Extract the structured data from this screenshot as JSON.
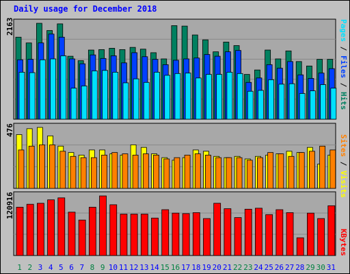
{
  "title": "Daily usage for December 2018",
  "colors": {
    "background": "#c0c0c0",
    "panel": "#a8a8a8",
    "hits": "#008060",
    "files": "#0040ff",
    "pages": "#00e0ff",
    "visits": "#ffff00",
    "sites": "#ff8000",
    "kbytes": "#ff0000",
    "title": "#0000ff",
    "weekday_label": "#0000ff",
    "weekend_label": "#008040"
  },
  "right_labels": {
    "top": [
      "Pages",
      "Files",
      "Hits"
    ],
    "middle": [
      "Sites",
      "Visits"
    ],
    "bottom": [
      "KBytes"
    ],
    "separator": " / "
  },
  "axis_max_labels": {
    "hits": "2163",
    "visits": "476",
    "kbytes": "120916"
  },
  "chart_data": [
    {
      "type": "bar",
      "title": "Daily usage for December 2018",
      "categories": [
        "1",
        "2",
        "3",
        "4",
        "5",
        "6",
        "7",
        "8",
        "9",
        "10",
        "11",
        "12",
        "13",
        "14",
        "15",
        "16",
        "17",
        "18",
        "19",
        "20",
        "21",
        "22",
        "23",
        "24",
        "25",
        "26",
        "27",
        "28",
        "29",
        "30",
        "31"
      ],
      "weekend_days": [
        "1",
        "2",
        "8",
        "9",
        "15",
        "16",
        "22",
        "23",
        "29",
        "30"
      ],
      "ylim": [
        0,
        2163
      ],
      "series": [
        {
          "name": "Hits",
          "values": [
            1850,
            1720,
            2163,
            2000,
            2150,
            1420,
            1320,
            1560,
            1570,
            1600,
            1570,
            1620,
            1580,
            1500,
            1360,
            2110,
            2100,
            1900,
            1790,
            1520,
            1740,
            1660,
            1010,
            1110,
            1560,
            1360,
            1540,
            1300,
            1200,
            1350,
            1350
          ]
        },
        {
          "name": "Files",
          "values": [
            1340,
            1350,
            1720,
            1920,
            1850,
            1360,
            1250,
            1450,
            1370,
            1430,
            1270,
            1500,
            1410,
            1350,
            1230,
            1330,
            1360,
            1380,
            1460,
            1420,
            1520,
            1550,
            830,
            930,
            1230,
            1150,
            1300,
            1000,
            920,
            1040,
            1140
          ]
        },
        {
          "name": "Pages",
          "values": [
            1060,
            1050,
            1340,
            1360,
            1430,
            700,
            750,
            1090,
            1100,
            1060,
            820,
            910,
            830,
            1060,
            990,
            1030,
            1040,
            930,
            1010,
            1010,
            1060,
            1030,
            630,
            650,
            890,
            790,
            800,
            580,
            640,
            780,
            700
          ]
        }
      ]
    },
    {
      "type": "bar",
      "categories": [
        "1",
        "2",
        "3",
        "4",
        "5",
        "6",
        "7",
        "8",
        "9",
        "10",
        "11",
        "12",
        "13",
        "14",
        "15",
        "16",
        "17",
        "18",
        "19",
        "20",
        "21",
        "22",
        "23",
        "24",
        "25",
        "26",
        "27",
        "28",
        "29",
        "30",
        "31"
      ],
      "ylim": [
        0,
        476
      ],
      "series": [
        {
          "name": "Visits",
          "values": [
            420,
            466,
            476,
            410,
            330,
            280,
            260,
            300,
            300,
            270,
            260,
            340,
            320,
            270,
            240,
            220,
            240,
            300,
            290,
            250,
            240,
            250,
            230,
            250,
            260,
            270,
            290,
            280,
            320,
            190,
            260
          ]
        },
        {
          "name": "Sites",
          "values": [
            300,
            330,
            340,
            340,
            290,
            250,
            240,
            240,
            260,
            280,
            270,
            260,
            270,
            260,
            230,
            240,
            260,
            270,
            260,
            240,
            240,
            240,
            220,
            240,
            280,
            270,
            250,
            280,
            290,
            330,
            300
          ]
        }
      ]
    },
    {
      "type": "bar",
      "categories": [
        "1",
        "2",
        "3",
        "4",
        "5",
        "6",
        "7",
        "8",
        "9",
        "10",
        "11",
        "12",
        "13",
        "14",
        "15",
        "16",
        "17",
        "18",
        "19",
        "20",
        "21",
        "22",
        "23",
        "24",
        "25",
        "26",
        "27",
        "28",
        "29",
        "30",
        "31"
      ],
      "ylim": [
        0,
        120916
      ],
      "series": [
        {
          "name": "KBytes",
          "values": [
            98000,
            104000,
            106000,
            113000,
            117000,
            88000,
            72000,
            98000,
            120916,
            103000,
            84000,
            84000,
            84000,
            76000,
            93000,
            86000,
            85000,
            87000,
            75000,
            106000,
            95000,
            77000,
            94000,
            96000,
            83000,
            93000,
            87000,
            36000,
            86000,
            75000,
            101000
          ]
        }
      ]
    }
  ]
}
